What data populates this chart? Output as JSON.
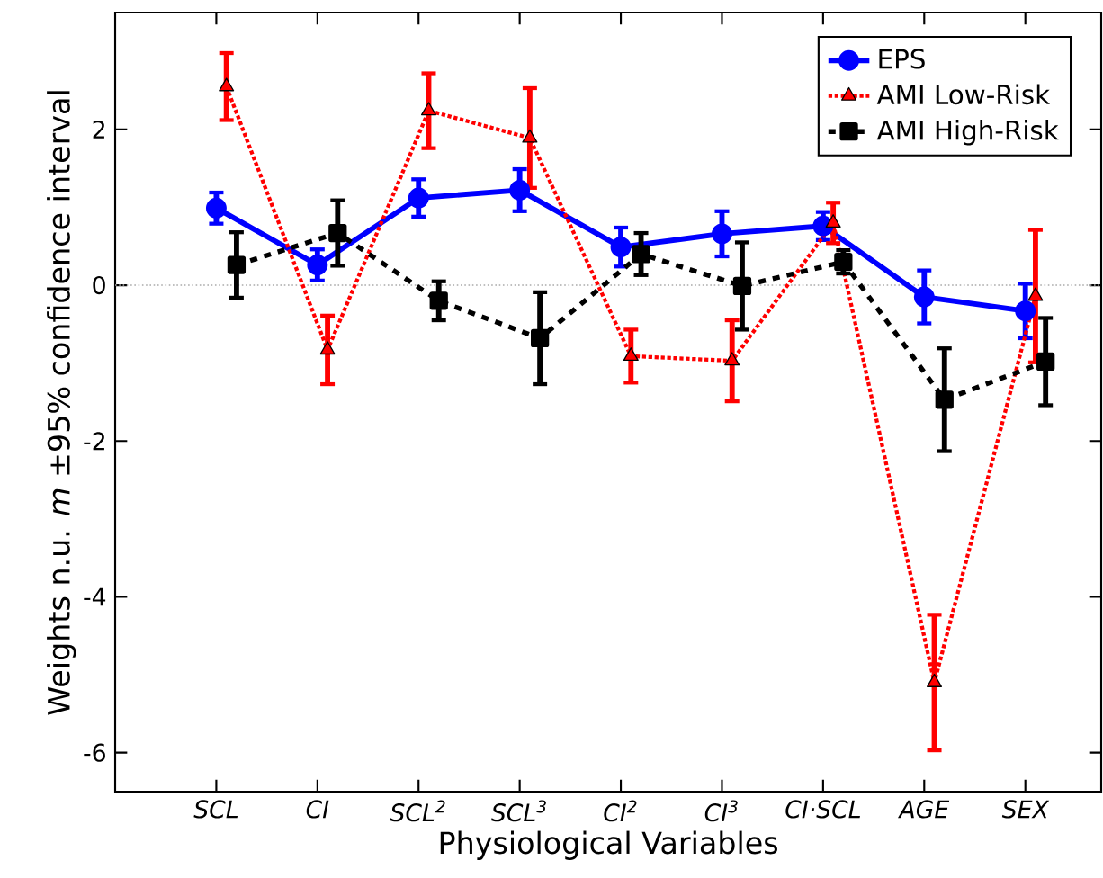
{
  "chart_data": {
    "type": "line",
    "xlabel": "Physiological Variables",
    "ylabel": "Weights n.u. *m* ±95% confidence interval",
    "categories": [
      "SCL",
      "CI",
      "SCL$^{2}$",
      "SCL$^{3}$",
      "CI$^{2}$",
      "CI$^{3}$",
      "CI·SCL",
      "AGE",
      "SEX"
    ],
    "ylim": [
      -6.5,
      3.5
    ],
    "yticks": [
      -6,
      -4,
      -2,
      0,
      2
    ],
    "grid": false,
    "legend": "top right",
    "ref_lines": [
      {
        "axis": "y",
        "value": 0,
        "color": "#aaaaaa",
        "line_style": "dotted"
      }
    ],
    "series": [
      {
        "name": "EPS",
        "color": "#0000ff",
        "marker": "circle",
        "line_style": "solid",
        "values": [
          0.99,
          0.26,
          1.12,
          1.22,
          0.49,
          0.66,
          0.76,
          -0.15,
          -0.33
        ],
        "errors": [
          0.2,
          0.2,
          0.24,
          0.27,
          0.25,
          0.29,
          0.18,
          0.34,
          0.35
        ]
      },
      {
        "name": "AMI Low-Risk",
        "color": "#ff0000",
        "marker": "triangle",
        "line_style": "dotted",
        "values": [
          2.55,
          -0.83,
          2.24,
          1.89,
          -0.91,
          -0.97,
          0.8,
          -5.1,
          -0.14
        ],
        "errors": [
          0.43,
          0.44,
          0.48,
          0.64,
          0.34,
          0.52,
          0.26,
          0.87,
          0.85
        ]
      },
      {
        "name": "AMI High-Risk",
        "color": "#000000",
        "marker": "square",
        "line_style": "dashed",
        "values": [
          0.26,
          0.67,
          -0.2,
          -0.68,
          0.4,
          -0.01,
          0.3,
          -1.47,
          -0.98
        ],
        "errors": [
          0.42,
          0.42,
          0.25,
          0.59,
          0.27,
          0.56,
          0.15,
          0.66,
          0.56
        ]
      }
    ]
  }
}
